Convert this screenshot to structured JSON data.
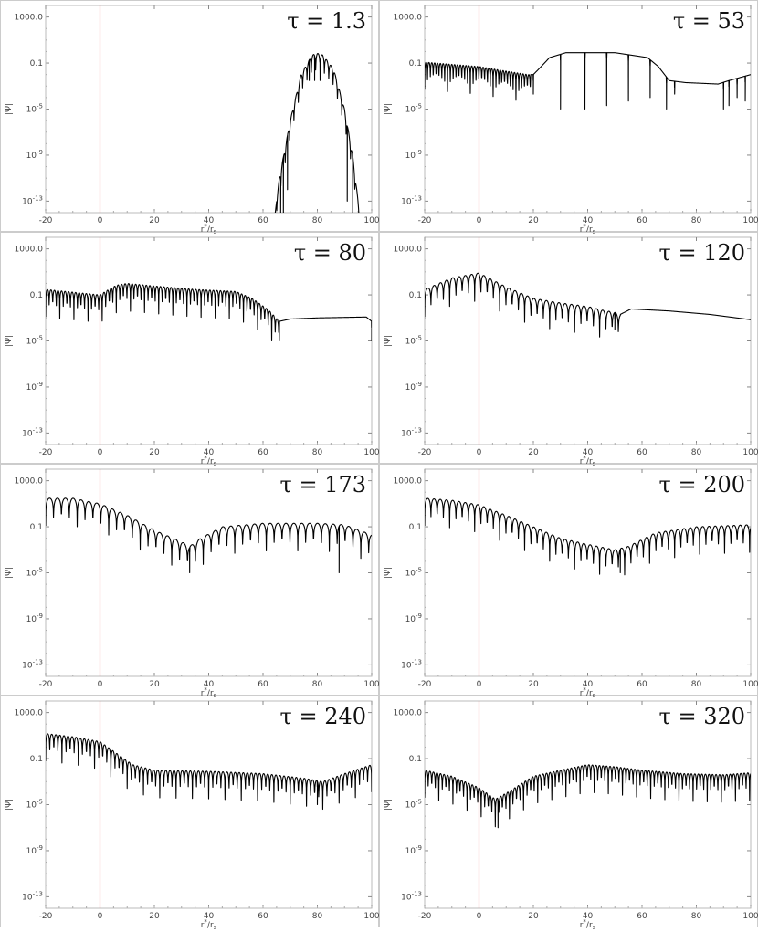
{
  "figure": {
    "panel_border_color": "#cccccc",
    "frame_color": "#bbbbbb",
    "curve_color": "#000000",
    "marker_color": "#e03a3a"
  },
  "chart_data": [
    {
      "type": "line",
      "yscale": "log",
      "title": "τ = 1.3",
      "xlabel": "r*/rs",
      "ylabel": "|Ψ|",
      "xlim": [
        -20,
        100
      ],
      "ylim": [
        1e-14,
        10000.0
      ],
      "xticks": [
        "-20",
        "0",
        "20",
        "40",
        "60",
        "80",
        "100"
      ],
      "yticks": [
        "1000.0",
        "0.1",
        "10^-5",
        "10^-9",
        "10^-13"
      ],
      "vline_x": 0,
      "envelope": [
        [
          64.5,
          1e-14
        ],
        [
          66,
          1e-11
        ],
        [
          70,
          1e-06
        ],
        [
          74,
          0.01
        ],
        [
          78,
          0.5
        ],
        [
          80,
          0.7
        ],
        [
          82,
          0.5
        ],
        [
          86,
          0.03
        ],
        [
          90,
          1e-05
        ],
        [
          93,
          1e-09
        ],
        [
          95.5,
          1e-14
        ]
      ],
      "nodes": {
        "start": 65,
        "end": 96,
        "spacing": 1.6
      },
      "nulls": [
        {
          "x": 66.5,
          "y": 1e-14
        },
        {
          "x": 67.5,
          "y": 1e-14
        },
        {
          "x": 69,
          "y": 1e-12
        },
        {
          "x": 77,
          "y": 0.003
        },
        {
          "x": 79,
          "y": 0.003
        },
        {
          "x": 81,
          "y": 0.003
        },
        {
          "x": 91,
          "y": 1e-13
        },
        {
          "x": 93,
          "y": 1e-14
        }
      ]
    },
    {
      "type": "line",
      "yscale": "log",
      "title": "τ = 53",
      "xlabel": "r*/rs",
      "ylabel": "|Ψ|",
      "xlim": [
        -20,
        100
      ],
      "ylim": [
        1e-14,
        10000.0
      ],
      "xticks": [
        "-20",
        "0",
        "20",
        "40",
        "60",
        "80",
        "100"
      ],
      "yticks": [
        "1000.0",
        "0.1",
        "10^-5",
        "10^-9",
        "10^-13"
      ],
      "vline_x": 0,
      "envelope": [
        [
          -20,
          0.12
        ],
        [
          0,
          0.05
        ],
        [
          10,
          0.02
        ],
        [
          18,
          0.01
        ],
        [
          20,
          0.01
        ],
        [
          22,
          0.03
        ],
        [
          26,
          0.3
        ],
        [
          32,
          0.8
        ],
        [
          50,
          0.8
        ],
        [
          62,
          0.3
        ],
        [
          66,
          0.05
        ],
        [
          70,
          0.003
        ],
        [
          76,
          0.002
        ],
        [
          88,
          0.0015
        ],
        [
          92,
          0.003
        ],
        [
          100,
          0.01
        ]
      ],
      "nodes": {
        "start": -20,
        "end": 19,
        "spacing": 1.05
      },
      "nulls": [
        {
          "x": 20,
          "y": 0.0002
        },
        {
          "x": 30,
          "y": 1e-05
        },
        {
          "x": 39,
          "y": 1e-05
        },
        {
          "x": 47,
          "y": 2e-05
        },
        {
          "x": 55,
          "y": 5e-05
        },
        {
          "x": 63,
          "y": 0.0001
        },
        {
          "x": 69,
          "y": 1e-05
        },
        {
          "x": 72,
          "y": 0.0002
        },
        {
          "x": 90,
          "y": 1e-05
        },
        {
          "x": 92,
          "y": 2e-05
        },
        {
          "x": 95,
          "y": 0.0001
        },
        {
          "x": 98,
          "y": 5e-05
        }
      ]
    },
    {
      "type": "line",
      "yscale": "log",
      "title": "τ = 80",
      "xlabel": "r*/rs",
      "ylabel": "|Ψ|",
      "xlim": [
        -20,
        100
      ],
      "ylim": [
        1e-14,
        10000.0
      ],
      "xticks": [
        "-20",
        "0",
        "20",
        "40",
        "60",
        "80",
        "100"
      ],
      "yticks": [
        "1000.0",
        "0.1",
        "10^-5",
        "10^-9",
        "10^-13"
      ],
      "vline_x": 0,
      "envelope": [
        [
          -20,
          0.3
        ],
        [
          0,
          0.1
        ],
        [
          2,
          0.2
        ],
        [
          6,
          0.7
        ],
        [
          10,
          1.0
        ],
        [
          20,
          0.6
        ],
        [
          35,
          0.3
        ],
        [
          50,
          0.2
        ],
        [
          56,
          0.05
        ],
        [
          62,
          0.005
        ],
        [
          66,
          0.0005
        ],
        [
          70,
          0.0008
        ],
        [
          80,
          0.001
        ],
        [
          98,
          0.0012
        ],
        [
          100,
          0.0005
        ]
      ],
      "nodes": {
        "start": -20,
        "end": 66,
        "spacing": 1.3
      },
      "nulls": [
        {
          "x": 66,
          "y": 1e-05
        },
        {
          "x": 100,
          "y": 1e-05
        }
      ]
    },
    {
      "type": "line",
      "yscale": "log",
      "title": "τ = 120",
      "xlabel": "r*/rs",
      "ylabel": "|Ψ|",
      "xlim": [
        -20,
        100
      ],
      "ylim": [
        1e-14,
        10000.0
      ],
      "xticks": [
        "-20",
        "0",
        "20",
        "40",
        "60",
        "80",
        "100"
      ],
      "yticks": [
        "1000.0",
        "0.1",
        "10^-5",
        "10^-9",
        "10^-13"
      ],
      "vline_x": 0,
      "envelope": [
        [
          -20,
          0.3
        ],
        [
          -10,
          3
        ],
        [
          0,
          8
        ],
        [
          10,
          0.5
        ],
        [
          20,
          0.05
        ],
        [
          30,
          0.02
        ],
        [
          40,
          0.01
        ],
        [
          45,
          0.005
        ],
        [
          50,
          0.003
        ],
        [
          52,
          0.002
        ],
        [
          56,
          0.006
        ],
        [
          70,
          0.004
        ],
        [
          85,
          0.002
        ],
        [
          100,
          0.0007
        ]
      ],
      "nodes": {
        "start": -20,
        "end": 52,
        "spacing": 2.3
      },
      "nulls": [
        {
          "x": 50,
          "y": 0.0001
        }
      ]
    },
    {
      "type": "line",
      "yscale": "log",
      "title": "τ = 173",
      "xlabel": "r*/rs",
      "ylabel": "|Ψ|",
      "xlim": [
        -20,
        100
      ],
      "ylim": [
        1e-14,
        10000.0
      ],
      "xticks": [
        "-20",
        "0",
        "20",
        "40",
        "60",
        "80",
        "100"
      ],
      "yticks": [
        "1000.0",
        "0.1",
        "10^-5",
        "10^-9",
        "10^-13"
      ],
      "vline_x": 0,
      "envelope": [
        [
          -20,
          30
        ],
        [
          -10,
          30
        ],
        [
          0,
          10
        ],
        [
          10,
          1
        ],
        [
          20,
          0.05
        ],
        [
          30,
          0.005
        ],
        [
          33,
          0.002
        ],
        [
          37,
          0.01
        ],
        [
          45,
          0.1
        ],
        [
          60,
          0.2
        ],
        [
          80,
          0.2
        ],
        [
          90,
          0.15
        ],
        [
          100,
          0.02
        ]
      ],
      "nodes": {
        "start": -20,
        "end": 100,
        "spacing": 2.9
      },
      "nulls": [
        {
          "x": 33,
          "y": 1e-05
        },
        {
          "x": 88,
          "y": 1e-05
        }
      ]
    },
    {
      "type": "line",
      "yscale": "log",
      "title": "τ = 200",
      "xlabel": "r*/rs",
      "ylabel": "|Ψ|",
      "xlim": [
        -20,
        100
      ],
      "ylim": [
        1e-14,
        10000.0
      ],
      "xticks": [
        "-20",
        "0",
        "20",
        "40",
        "60",
        "80",
        "100"
      ],
      "yticks": [
        "1000.0",
        "0.1",
        "10^-5",
        "10^-9",
        "10^-13"
      ],
      "vline_x": 0,
      "envelope": [
        [
          -20,
          30
        ],
        [
          -10,
          20
        ],
        [
          0,
          8
        ],
        [
          10,
          1
        ],
        [
          20,
          0.1
        ],
        [
          30,
          0.01
        ],
        [
          40,
          0.003
        ],
        [
          50,
          0.001
        ],
        [
          55,
          0.002
        ],
        [
          65,
          0.03
        ],
        [
          80,
          0.1
        ],
        [
          100,
          0.15
        ]
      ],
      "nodes": {
        "start": -20,
        "end": 100,
        "spacing": 2.3
      },
      "nulls": [
        {
          "x": 52,
          "y": 1e-05
        }
      ]
    },
    {
      "type": "line",
      "yscale": "log",
      "title": "τ = 240",
      "xlabel": "r*/rs",
      "ylabel": "|Ψ|",
      "xlim": [
        -20,
        100
      ],
      "ylim": [
        1e-14,
        10000.0
      ],
      "xticks": [
        "-20",
        "0",
        "20",
        "40",
        "60",
        "80",
        "100"
      ],
      "yticks": [
        "1000.0",
        "0.1",
        "10^-5",
        "10^-9",
        "10^-13"
      ],
      "vline_x": 0,
      "envelope": [
        [
          -20,
          15
        ],
        [
          -10,
          8
        ],
        [
          0,
          3
        ],
        [
          6,
          0.3
        ],
        [
          12,
          0.03
        ],
        [
          20,
          0.01
        ],
        [
          40,
          0.008
        ],
        [
          60,
          0.005
        ],
        [
          75,
          0.002
        ],
        [
          82,
          0.001
        ],
        [
          90,
          0.005
        ],
        [
          100,
          0.03
        ]
      ],
      "nodes": {
        "start": -20,
        "end": 100,
        "spacing": 1.5
      },
      "nulls": [
        {
          "x": 80,
          "y": 1e-05
        }
      ]
    },
    {
      "type": "line",
      "yscale": "log",
      "title": "τ = 320",
      "xlabel": "r*/rs",
      "ylabel": "|Ψ|",
      "xlim": [
        -20,
        100
      ],
      "ylim": [
        1e-14,
        10000.0
      ],
      "xticks": [
        "-20",
        "0",
        "20",
        "40",
        "60",
        "80",
        "100"
      ],
      "yticks": [
        "1000.0",
        "0.1",
        "10^-5",
        "10^-9",
        "10^-13"
      ],
      "vline_x": 0,
      "envelope": [
        [
          -20,
          0.01
        ],
        [
          -10,
          0.003
        ],
        [
          0,
          0.0003
        ],
        [
          6,
          3e-05
        ],
        [
          10,
          0.0001
        ],
        [
          20,
          0.003
        ],
        [
          30,
          0.01
        ],
        [
          40,
          0.03
        ],
        [
          50,
          0.02
        ],
        [
          60,
          0.01
        ],
        [
          75,
          0.005
        ],
        [
          90,
          0.004
        ],
        [
          100,
          0.006
        ]
      ],
      "nodes": {
        "start": -20,
        "end": 100,
        "spacing": 1.3
      },
      "nulls": [
        {
          "x": 7,
          "y": 1e-07
        }
      ]
    }
  ]
}
